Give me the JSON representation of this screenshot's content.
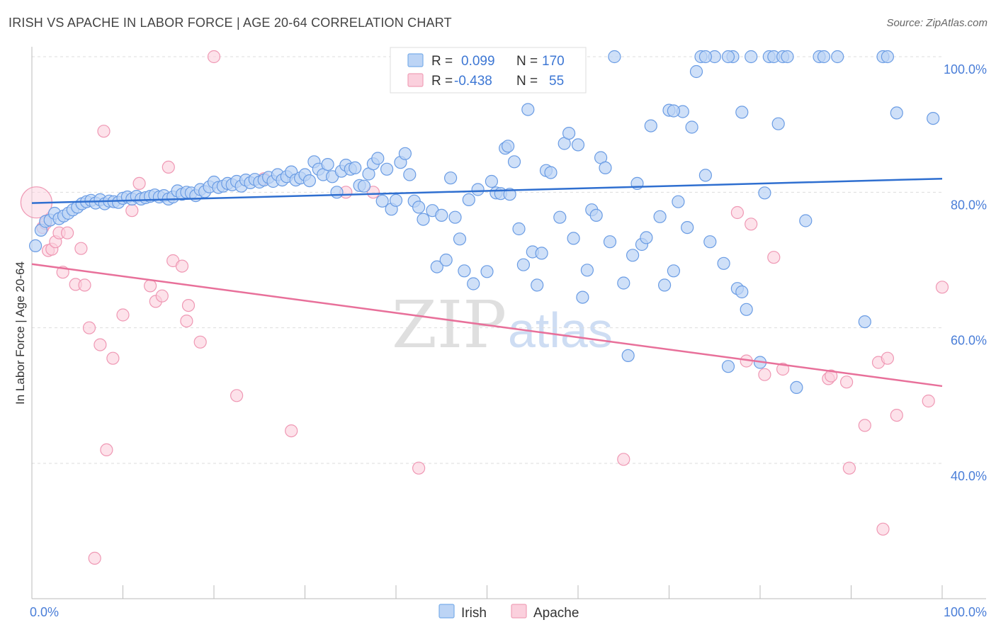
{
  "title": "IRISH VS APACHE IN LABOR FORCE | AGE 20-64 CORRELATION CHART",
  "source": "Source: ZipAtlas.com",
  "watermark": {
    "zip": "ZIP",
    "atlas": "atlas"
  },
  "legend_top": {
    "rows": [
      {
        "series": "Irish",
        "r_label": "R =",
        "r_value": "0.099",
        "n_label": "N =",
        "n_value": "170",
        "color": "#7aaeea",
        "fill": "#bcd4f5"
      },
      {
        "series": "Apache",
        "r_label": "R =",
        "r_value": "-0.438",
        "n_label": "N =",
        "n_value": "55",
        "color": "#f0a0b8",
        "fill": "#fbd0dd"
      }
    ]
  },
  "legend_bottom": [
    {
      "label": "Irish",
      "fill": "#bcd4f5",
      "stroke": "#7aaeea"
    },
    {
      "label": "Apache",
      "fill": "#fbd0dd",
      "stroke": "#f0a0b8"
    }
  ],
  "chart_data": {
    "type": "scatter",
    "title": "IRISH VS APACHE IN LABOR FORCE | AGE 20-64 CORRELATION CHART",
    "xlabel": "",
    "ylabel": "In Labor Force | Age 20-64",
    "xlim": [
      0,
      100
    ],
    "ylim": [
      20,
      102
    ],
    "x_tick_labels": [
      "0.0%",
      "100.0%"
    ],
    "y_ticks": [
      40,
      60,
      80,
      100
    ],
    "y_tick_labels": [
      "40.0%",
      "60.0%",
      "80.0%",
      "100.0%"
    ],
    "grid": true,
    "legend_position": "top-center",
    "series": [
      {
        "name": "Irish",
        "color": "#5b8fdc",
        "trend_color": "#2f6fd0",
        "trend": [
          [
            0,
            78.4
          ],
          [
            100,
            82.0
          ]
        ],
        "points": [
          [
            0.4,
            72.1
          ],
          [
            1.0,
            74.4
          ],
          [
            1.5,
            75.7
          ],
          [
            2.0,
            75.9
          ],
          [
            2.5,
            76.9
          ],
          [
            3.0,
            76.1
          ],
          [
            3.5,
            76.5
          ],
          [
            4.0,
            76.9
          ],
          [
            4.5,
            77.4
          ],
          [
            5.0,
            77.8
          ],
          [
            5.5,
            78.3
          ],
          [
            6.0,
            78.6
          ],
          [
            6.5,
            78.8
          ],
          [
            7.0,
            78.4
          ],
          [
            7.5,
            78.9
          ],
          [
            8.0,
            78.3
          ],
          [
            8.5,
            78.7
          ],
          [
            9.0,
            78.6
          ],
          [
            9.5,
            78.5
          ],
          [
            10.0,
            79.1
          ],
          [
            10.5,
            79.3
          ],
          [
            11.0,
            79.0
          ],
          [
            11.5,
            79.4
          ],
          [
            12.0,
            79.0
          ],
          [
            12.5,
            79.2
          ],
          [
            13.0,
            79.4
          ],
          [
            13.5,
            79.6
          ],
          [
            14.0,
            79.3
          ],
          [
            14.5,
            79.5
          ],
          [
            15.0,
            79.0
          ],
          [
            15.5,
            79.3
          ],
          [
            16.0,
            80.2
          ],
          [
            16.5,
            79.7
          ],
          [
            17.0,
            80.0
          ],
          [
            17.5,
            79.9
          ],
          [
            18.0,
            79.5
          ],
          [
            18.5,
            80.4
          ],
          [
            19.0,
            80.1
          ],
          [
            19.5,
            80.8
          ],
          [
            20.0,
            81.5
          ],
          [
            20.5,
            80.7
          ],
          [
            21.0,
            80.9
          ],
          [
            21.5,
            81.3
          ],
          [
            22.0,
            81.1
          ],
          [
            22.5,
            81.6
          ],
          [
            23.0,
            80.9
          ],
          [
            23.5,
            81.8
          ],
          [
            24.0,
            81.4
          ],
          [
            24.5,
            81.9
          ],
          [
            25.0,
            81.5
          ],
          [
            25.5,
            81.8
          ],
          [
            26.0,
            82.2
          ],
          [
            26.5,
            81.6
          ],
          [
            27.0,
            82.6
          ],
          [
            27.5,
            81.8
          ],
          [
            28.0,
            82.3
          ],
          [
            28.5,
            83.0
          ],
          [
            29.0,
            81.8
          ],
          [
            29.5,
            82.1
          ],
          [
            30.0,
            82.6
          ],
          [
            30.5,
            81.7
          ],
          [
            31.0,
            84.5
          ],
          [
            31.5,
            83.4
          ],
          [
            32.0,
            82.6
          ],
          [
            32.5,
            84.1
          ],
          [
            33.0,
            82.3
          ],
          [
            33.5,
            80.0
          ],
          [
            34.0,
            83.1
          ],
          [
            34.5,
            84.0
          ],
          [
            35.0,
            83.4
          ],
          [
            35.5,
            83.6
          ],
          [
            36.0,
            81.0
          ],
          [
            36.5,
            80.9
          ],
          [
            37.0,
            82.7
          ],
          [
            37.5,
            84.2
          ],
          [
            38.0,
            85.0
          ],
          [
            38.5,
            78.7
          ],
          [
            39.0,
            83.4
          ],
          [
            39.5,
            77.5
          ],
          [
            40.0,
            78.8
          ],
          [
            40.5,
            84.4
          ],
          [
            41.0,
            85.7
          ],
          [
            41.5,
            82.6
          ],
          [
            42.0,
            78.7
          ],
          [
            42.5,
            77.8
          ],
          [
            43.0,
            76.0
          ],
          [
            44.0,
            77.3
          ],
          [
            44.5,
            69.0
          ],
          [
            45.0,
            76.6
          ],
          [
            45.5,
            70.0
          ],
          [
            46.0,
            82.1
          ],
          [
            46.5,
            76.3
          ],
          [
            47.0,
            73.1
          ],
          [
            47.5,
            68.4
          ],
          [
            48.0,
            78.9
          ],
          [
            48.5,
            66.5
          ],
          [
            49.0,
            80.4
          ],
          [
            50.0,
            68.3
          ],
          [
            50.5,
            81.6
          ],
          [
            51.0,
            79.9
          ],
          [
            51.5,
            79.8
          ],
          [
            52.0,
            86.5
          ],
          [
            52.3,
            86.8
          ],
          [
            52.5,
            79.7
          ],
          [
            53.0,
            84.5
          ],
          [
            53.5,
            74.6
          ],
          [
            54.0,
            69.3
          ],
          [
            54.5,
            92.2
          ],
          [
            55.0,
            71.2
          ],
          [
            55.5,
            66.3
          ],
          [
            56.0,
            71.0
          ],
          [
            56.5,
            83.2
          ],
          [
            57.0,
            82.9
          ],
          [
            58.0,
            76.3
          ],
          [
            58.5,
            87.2
          ],
          [
            59.0,
            88.7
          ],
          [
            59.5,
            73.2
          ],
          [
            60.0,
            87.0
          ],
          [
            60.5,
            64.5
          ],
          [
            61.0,
            68.5
          ],
          [
            61.5,
            77.4
          ],
          [
            62.0,
            76.6
          ],
          [
            62.5,
            85.1
          ],
          [
            63.0,
            83.6
          ],
          [
            63.5,
            72.7
          ],
          [
            64.0,
            100.0
          ],
          [
            65.0,
            66.6
          ],
          [
            65.5,
            55.9
          ],
          [
            66.0,
            70.7
          ],
          [
            66.5,
            81.3
          ],
          [
            67.0,
            72.3
          ],
          [
            67.5,
            73.3
          ],
          [
            68.0,
            89.8
          ],
          [
            69.0,
            76.4
          ],
          [
            69.5,
            66.3
          ],
          [
            70.0,
            92.1
          ],
          [
            70.5,
            68.4
          ],
          [
            71.0,
            78.6
          ],
          [
            71.5,
            91.9
          ],
          [
            72.0,
            74.8
          ],
          [
            72.5,
            89.6
          ],
          [
            73.0,
            97.8
          ],
          [
            73.5,
            100.0
          ],
          [
            74.0,
            82.5
          ],
          [
            74.5,
            72.7
          ],
          [
            75.0,
            100.0
          ],
          [
            76.0,
            69.5
          ],
          [
            76.5,
            54.3
          ],
          [
            77.0,
            100.0
          ],
          [
            77.5,
            65.8
          ],
          [
            78.0,
            91.8
          ],
          [
            78.5,
            62.7
          ],
          [
            79.0,
            100.0
          ],
          [
            80.0,
            54.9
          ],
          [
            80.5,
            79.9
          ],
          [
            81.0,
            100.0
          ],
          [
            81.5,
            100.0
          ],
          [
            82.0,
            90.1
          ],
          [
            82.5,
            100.0
          ],
          [
            83.0,
            100.0
          ],
          [
            84.0,
            51.2
          ],
          [
            85.0,
            75.8
          ],
          [
            86.5,
            100.0
          ],
          [
            87.0,
            100.0
          ],
          [
            88.5,
            100.0
          ],
          [
            91.5,
            60.9
          ],
          [
            93.5,
            100.0
          ],
          [
            94.0,
            100.0
          ],
          [
            95.0,
            91.7
          ],
          [
            99.0,
            90.9
          ],
          [
            78.0,
            65.3
          ],
          [
            74.0,
            100.0
          ],
          [
            70.5,
            92.0
          ],
          [
            76.5,
            100.0
          ]
        ]
      },
      {
        "name": "Apache",
        "color": "#ea7ea0",
        "trend_color": "#e8709a",
        "trend": [
          [
            0,
            69.4
          ],
          [
            100,
            51.4
          ]
        ],
        "points": [
          [
            0.5,
            78.5
          ],
          [
            1.2,
            74.8
          ],
          [
            1.5,
            75.4
          ],
          [
            1.8,
            71.4
          ],
          [
            2.2,
            71.6
          ],
          [
            2.6,
            72.7
          ],
          [
            3.0,
            74.0
          ],
          [
            3.4,
            68.2
          ],
          [
            3.9,
            74.0
          ],
          [
            4.8,
            66.4
          ],
          [
            5.4,
            71.7
          ],
          [
            5.8,
            66.3
          ],
          [
            6.3,
            60.0
          ],
          [
            6.9,
            26.0
          ],
          [
            7.5,
            57.5
          ],
          [
            7.9,
            89.0
          ],
          [
            8.2,
            42.0
          ],
          [
            8.9,
            55.5
          ],
          [
            10.0,
            61.9
          ],
          [
            11.0,
            77.3
          ],
          [
            11.8,
            81.3
          ],
          [
            13.0,
            66.2
          ],
          [
            13.6,
            63.9
          ],
          [
            14.3,
            64.7
          ],
          [
            15.0,
            83.7
          ],
          [
            15.5,
            69.9
          ],
          [
            16.5,
            69.1
          ],
          [
            17.0,
            61.0
          ],
          [
            17.2,
            63.3
          ],
          [
            18.5,
            57.9
          ],
          [
            20.0,
            100.0
          ],
          [
            22.5,
            50.0
          ],
          [
            25.5,
            82.0
          ],
          [
            28.5,
            44.8
          ],
          [
            34.5,
            80.0
          ],
          [
            37.5,
            80.0
          ],
          [
            42.5,
            39.3
          ],
          [
            65.0,
            40.6
          ],
          [
            77.5,
            77.0
          ],
          [
            78.5,
            55.1
          ],
          [
            79.0,
            75.3
          ],
          [
            80.5,
            53.1
          ],
          [
            81.5,
            70.4
          ],
          [
            82.5,
            53.9
          ],
          [
            87.5,
            52.5
          ],
          [
            87.8,
            52.9
          ],
          [
            89.5,
            52.0
          ],
          [
            89.8,
            39.3
          ],
          [
            91.5,
            45.6
          ],
          [
            93.0,
            54.9
          ],
          [
            93.5,
            30.3
          ],
          [
            94.0,
            55.5
          ],
          [
            95.0,
            47.1
          ],
          [
            98.5,
            49.2
          ],
          [
            100.0,
            66.0
          ]
        ]
      }
    ]
  }
}
